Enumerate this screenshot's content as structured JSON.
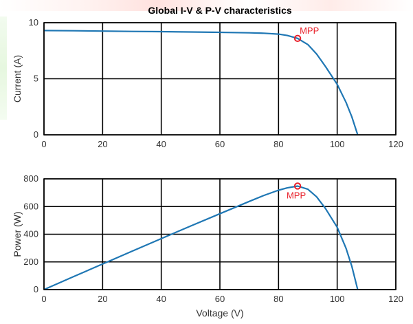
{
  "figure": {
    "title": "Global I-V & P-V characteristics"
  },
  "chart_data": [
    {
      "type": "line",
      "title": "Global I-V & P-V characteristics",
      "xlabel": "",
      "ylabel": "Current (A)",
      "xlim": [
        0,
        120
      ],
      "ylim": [
        0,
        10
      ],
      "xticks": [
        0,
        20,
        40,
        60,
        80,
        100,
        120
      ],
      "yticks": [
        0,
        5,
        10
      ],
      "grid": true,
      "series": [
        {
          "color": "#1f77b4",
          "x": [
            0,
            10,
            20,
            30,
            40,
            50,
            60,
            70,
            75,
            80,
            83,
            86.5,
            90,
            93,
            96,
            100,
            103,
            105,
            107
          ],
          "y": [
            9.3,
            9.28,
            9.25,
            9.22,
            9.2,
            9.17,
            9.14,
            9.1,
            9.06,
            8.98,
            8.86,
            8.6,
            8.05,
            7.2,
            6.1,
            4.5,
            2.9,
            1.6,
            0
          ]
        }
      ],
      "annotations": [
        {
          "label": "MPP",
          "x": 86.5,
          "y": 8.6,
          "color": "#e8202a"
        }
      ]
    },
    {
      "type": "line",
      "title": "",
      "xlabel": "Voltage (V)",
      "ylabel": "Power (W)",
      "xlim": [
        0,
        120
      ],
      "ylim": [
        0,
        800
      ],
      "xticks": [
        0,
        20,
        40,
        60,
        80,
        100,
        120
      ],
      "yticks": [
        0,
        200,
        400,
        600,
        800
      ],
      "grid": true,
      "series": [
        {
          "color": "#1f77b4",
          "x": [
            0,
            10,
            20,
            30,
            40,
            50,
            60,
            70,
            75,
            80,
            83,
            86.5,
            90,
            93,
            96,
            100,
            103,
            105,
            107
          ],
          "y": [
            0,
            93,
            185,
            277,
            368,
            459,
            548,
            637,
            680,
            718,
            735,
            748,
            725,
            670,
            586,
            450,
            299,
            168,
            0
          ]
        }
      ],
      "annotations": [
        {
          "label": "MPP",
          "x": 86.5,
          "y": 748,
          "color": "#e8202a"
        }
      ]
    }
  ]
}
